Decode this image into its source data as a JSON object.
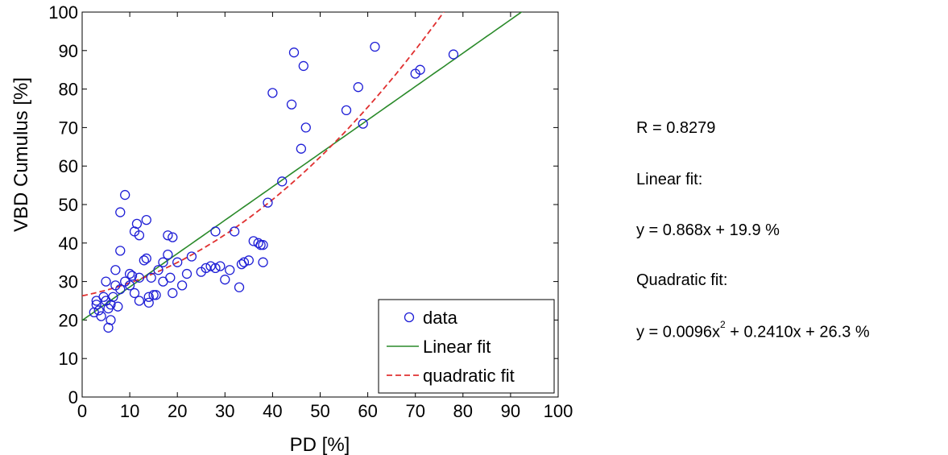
{
  "chart_data": {
    "type": "scatter",
    "xlabel": "PD [%]",
    "ylabel": "VBD Cumulus [%]",
    "xlim": [
      0,
      100
    ],
    "ylim": [
      0,
      100
    ],
    "xticks": [
      0,
      10,
      20,
      30,
      40,
      50,
      60,
      70,
      80,
      90,
      100
    ],
    "yticks": [
      0,
      10,
      20,
      30,
      40,
      50,
      60,
      70,
      80,
      90,
      100
    ],
    "grid": false,
    "legend_position": "bottom-right",
    "legend": [
      "data",
      "Linear fit",
      "quadratic fit"
    ],
    "colors": {
      "data": "#1f1fd6",
      "linear": "#2a8a2a",
      "quadratic": "#e03030"
    },
    "series": [
      {
        "name": "data",
        "points": [
          [
            2.5,
            22
          ],
          [
            3,
            24
          ],
          [
            3,
            25
          ],
          [
            3.5,
            22.5
          ],
          [
            4,
            21
          ],
          [
            4.5,
            26
          ],
          [
            5,
            25
          ],
          [
            5,
            30
          ],
          [
            5.5,
            18
          ],
          [
            5.5,
            23
          ],
          [
            6,
            20
          ],
          [
            6,
            24
          ],
          [
            6.5,
            26
          ],
          [
            7,
            29
          ],
          [
            7,
            33
          ],
          [
            7.5,
            23.5
          ],
          [
            8,
            28
          ],
          [
            8,
            38
          ],
          [
            8,
            48
          ],
          [
            9,
            52.5
          ],
          [
            9,
            30
          ],
          [
            10,
            32
          ],
          [
            10,
            29
          ],
          [
            10.5,
            31.5
          ],
          [
            11,
            27
          ],
          [
            11,
            43
          ],
          [
            11.5,
            45
          ],
          [
            12,
            25
          ],
          [
            12,
            42
          ],
          [
            12,
            31
          ],
          [
            13,
            35.5
          ],
          [
            13.5,
            36
          ],
          [
            13.5,
            46
          ],
          [
            14,
            26
          ],
          [
            14,
            24.5
          ],
          [
            14.5,
            31
          ],
          [
            15,
            26.5
          ],
          [
            15.5,
            26.5
          ],
          [
            16,
            33
          ],
          [
            17,
            35
          ],
          [
            17,
            30
          ],
          [
            18,
            42
          ],
          [
            18,
            37
          ],
          [
            18.5,
            31
          ],
          [
            19,
            27
          ],
          [
            19,
            41.5
          ],
          [
            20,
            35
          ],
          [
            21,
            29
          ],
          [
            22,
            32
          ],
          [
            23,
            36.5
          ],
          [
            25,
            32.5
          ],
          [
            26,
            33.5
          ],
          [
            27,
            34
          ],
          [
            28,
            43
          ],
          [
            28,
            33.5
          ],
          [
            29,
            34
          ],
          [
            30,
            30.5
          ],
          [
            31,
            33
          ],
          [
            32,
            43
          ],
          [
            33,
            28.5
          ],
          [
            33.5,
            34.5
          ],
          [
            34,
            35
          ],
          [
            35,
            35.5
          ],
          [
            36,
            40.5
          ],
          [
            37,
            40
          ],
          [
            37.5,
            39.5
          ],
          [
            38,
            39.5
          ],
          [
            38,
            35
          ],
          [
            39,
            50.5
          ],
          [
            40,
            79
          ],
          [
            42,
            56
          ],
          [
            44.5,
            89.5
          ],
          [
            44,
            76
          ],
          [
            46,
            64.5
          ],
          [
            46.5,
            86
          ],
          [
            47,
            70
          ],
          [
            55.5,
            74.5
          ],
          [
            58,
            80.5
          ],
          [
            59,
            71
          ],
          [
            61.5,
            91
          ],
          [
            70,
            84
          ],
          [
            71,
            85
          ],
          [
            78,
            89
          ]
        ]
      },
      {
        "name": "Linear fit",
        "slope": 0.868,
        "intercept": 19.9
      },
      {
        "name": "quadratic fit",
        "a": 0.0096,
        "b": 0.241,
        "c": 26.3
      }
    ]
  },
  "annotations": {
    "r": "R = 0.8279",
    "linear_label": "Linear fit:",
    "linear_eq": "y = 0.868x + 19.9 %",
    "quad_label": "Quadratic fit:",
    "quad_eq_pre": "y = 0.0096x",
    "quad_eq_sup": "2",
    "quad_eq_post": " + 0.2410x + 26.3 %"
  }
}
